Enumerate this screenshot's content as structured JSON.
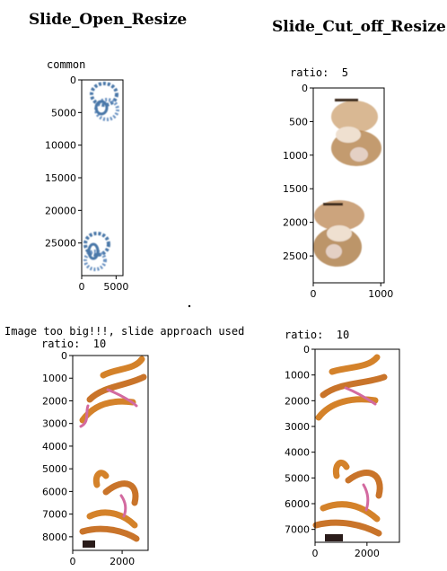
{
  "headings": {
    "open": "Slide_Open_Resize",
    "cut": "Slide_Cut_off_Resize"
  },
  "texts": {
    "common": "common",
    "ratio_top_right": "ratio:  5",
    "too_big": "Image too big!!!, slide approach used",
    "ratio_bottom_left": "ratio:  10",
    "ratio_bottom_right": "ratio:  10"
  },
  "colors": {
    "blue_stain": "#4a77a8",
    "brown_stain": "#a0743e",
    "orange_stain": "#d4822a",
    "pink_stain": "#d36aa0"
  },
  "chart_data": [
    {
      "id": "open-common",
      "type": "image",
      "title": "",
      "xlim": [
        0,
        6000
      ],
      "ylim": [
        0,
        30000
      ],
      "xticks": [
        0,
        5000
      ],
      "yticks": [
        0,
        5000,
        10000,
        15000,
        20000,
        25000
      ],
      "content": "blue-stained tissue sections"
    },
    {
      "id": "cut-ratio5",
      "type": "image",
      "title": "",
      "xlim": [
        0,
        1050
      ],
      "ylim": [
        0,
        2900
      ],
      "xticks": [
        0,
        1000
      ],
      "yticks": [
        0,
        500,
        1000,
        1500,
        2000,
        2500
      ],
      "content": "brown-stained tissue sections"
    },
    {
      "id": "open-ratio10",
      "type": "image",
      "title": "",
      "xlim": [
        0,
        3050
      ],
      "ylim": [
        0,
        8600
      ],
      "xticks": [
        0,
        2000
      ],
      "yticks": [
        0,
        1000,
        2000,
        3000,
        4000,
        5000,
        6000,
        7000,
        8000
      ],
      "content": "orange-stained tissue sections"
    },
    {
      "id": "cut-ratio10",
      "type": "image",
      "title": "",
      "xlim": [
        0,
        3250
      ],
      "ylim": [
        0,
        7500
      ],
      "xticks": [
        0,
        2000
      ],
      "yticks": [
        0,
        1000,
        2000,
        3000,
        4000,
        5000,
        6000,
        7000
      ],
      "content": "orange-stained tissue sections"
    }
  ]
}
